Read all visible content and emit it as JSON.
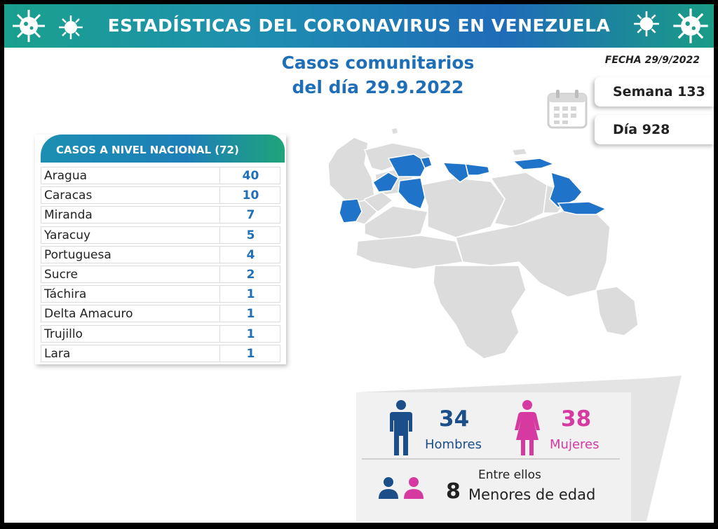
{
  "header": {
    "title": "ESTADÍSTICAS DEL CORONAVIRUS EN VENEZUELA"
  },
  "subtitle": {
    "line1": "Casos comunitarios",
    "line2": "del día 29.9.2022"
  },
  "fecha": "FECHA 29/9/2022",
  "semana": "Semana 133",
  "dia": "Día 928",
  "table": {
    "header": "CASOS A NIVEL NACIONAL  (72)",
    "rows": [
      {
        "name": "Aragua",
        "value": "40"
      },
      {
        "name": "Caracas",
        "value": "10"
      },
      {
        "name": "Miranda",
        "value": "7"
      },
      {
        "name": "Yaracuy",
        "value": "5"
      },
      {
        "name": "Portuguesa",
        "value": "4"
      },
      {
        "name": "Sucre",
        "value": "2"
      },
      {
        "name": "Táchira",
        "value": "1"
      },
      {
        "name": "Delta Amacuro",
        "value": "1"
      },
      {
        "name": "Trujillo",
        "value": "1"
      },
      {
        "name": "Lara",
        "value": "1"
      }
    ]
  },
  "gender": {
    "men_count": "34",
    "men_label": "Hombres",
    "women_count": "38",
    "women_label": "Mujeres",
    "among_label": "Entre ellos",
    "minors_count": "8",
    "minors_label": "Menores de edad"
  },
  "colors": {
    "accent_blue": "#1f6fb8",
    "men": "#1c4e8a",
    "women": "#d63aa0",
    "map_highlight": "#1f73c9",
    "map_base": "#dcdcdc"
  },
  "icons": [
    "virus-icon",
    "calendar-icon",
    "man-icon",
    "woman-icon",
    "minors-icon"
  ]
}
